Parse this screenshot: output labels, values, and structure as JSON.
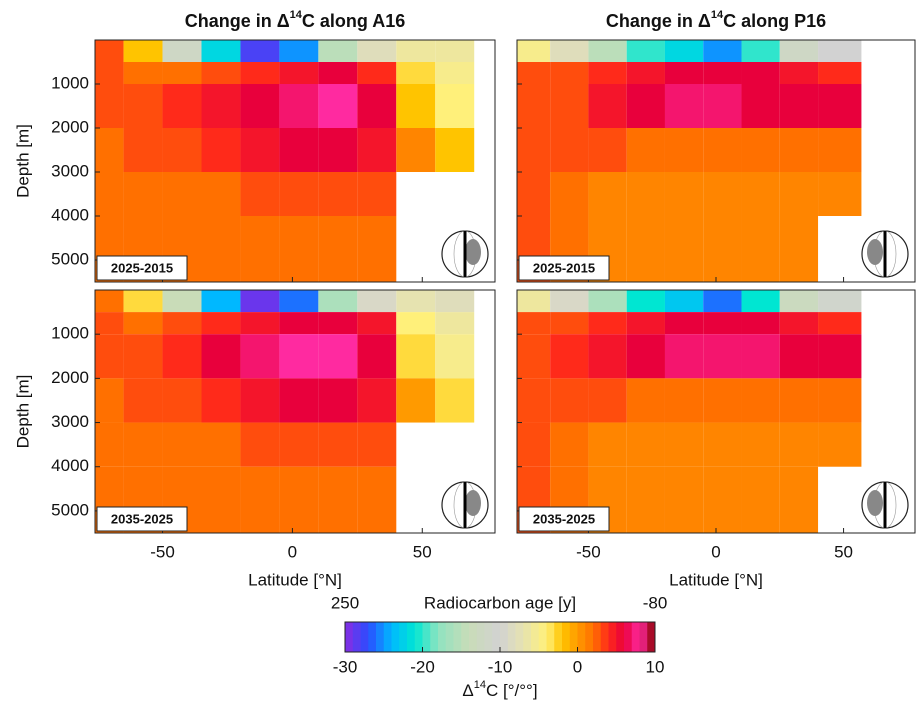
{
  "chart_data": [
    {
      "type": "heatmap",
      "title": [
        "Change in Δ",
        "14",
        "C along A16"
      ],
      "label": "2025-2015",
      "ylabel": "Depth [m]",
      "xbins": [
        -80,
        -65,
        -50,
        -35,
        -20,
        -5,
        10,
        25,
        40,
        55,
        70
      ],
      "ybins": [
        0,
        500,
        1000,
        2000,
        3000,
        4000,
        5500
      ],
      "values": [
        [
          3,
          -2,
          -12,
          -22,
          -28,
          -25,
          -15,
          -8,
          -6,
          -6
        ],
        [
          3,
          2,
          2,
          3,
          4,
          5,
          6,
          4,
          -3,
          -5
        ],
        [
          3,
          3,
          4,
          5,
          6,
          7,
          8,
          6,
          -2,
          -4
        ],
        [
          2,
          3,
          3,
          4,
          5,
          6,
          6,
          5,
          1,
          -2
        ],
        [
          2,
          2,
          2,
          2,
          3,
          3,
          3,
          3,
          null,
          null
        ],
        [
          2,
          2,
          2,
          2,
          2,
          2,
          2,
          2,
          null,
          null
        ]
      ],
      "xlim": [
        -76,
        78
      ],
      "ylim": [
        0,
        5500
      ],
      "xticks": [
        -50,
        0,
        50
      ],
      "yticks": [
        1000,
        2000,
        3000,
        4000,
        5000
      ]
    },
    {
      "type": "heatmap",
      "title": [
        "Change in Δ",
        "14",
        "C along P16"
      ],
      "label": "2025-2015",
      "xbins": [
        -80,
        -65,
        -50,
        -35,
        -20,
        -5,
        10,
        25,
        40,
        57
      ],
      "ybins": [
        0,
        500,
        1000,
        2000,
        3000,
        4000,
        5500
      ],
      "values": [
        [
          -5,
          -8,
          -15,
          -20,
          -22,
          -25,
          -20,
          -12,
          -10
        ],
        [
          3,
          3,
          4,
          5,
          6,
          6,
          6,
          5,
          4
        ],
        [
          3,
          3,
          5,
          6,
          7,
          7,
          6,
          6,
          6
        ],
        [
          3,
          3,
          3,
          2,
          2,
          2,
          2,
          2,
          2
        ],
        [
          3,
          2,
          1,
          1,
          1,
          1,
          1,
          1,
          1
        ],
        [
          3,
          2,
          1,
          1,
          1,
          1,
          1,
          1,
          null
        ]
      ],
      "xlim": [
        -78,
        78
      ],
      "ylim": [
        0,
        5500
      ],
      "xticks": [
        -50,
        0,
        50
      ],
      "yticks": [
        1000,
        2000,
        3000,
        4000,
        5000
      ]
    },
    {
      "type": "heatmap",
      "label": "2035-2025",
      "ylabel": "Depth [m]",
      "xlabel": "Latitude [°N]",
      "xbins": [
        -80,
        -65,
        -50,
        -35,
        -20,
        -5,
        10,
        25,
        40,
        55,
        70
      ],
      "ybins": [
        0,
        500,
        1000,
        2000,
        3000,
        4000,
        5500
      ],
      "values": [
        [
          2,
          -3,
          -14,
          -24,
          -29,
          -26,
          -16,
          -9,
          -7,
          -8
        ],
        [
          3,
          2,
          3,
          4,
          5,
          6,
          6,
          5,
          -4,
          -6
        ],
        [
          3,
          3,
          4,
          6,
          7,
          8,
          8,
          6,
          -3,
          -5
        ],
        [
          2,
          3,
          3,
          4,
          5,
          6,
          6,
          5,
          0,
          -3
        ],
        [
          2,
          2,
          2,
          2,
          3,
          3,
          3,
          3,
          null,
          null
        ],
        [
          2,
          2,
          2,
          2,
          2,
          2,
          2,
          2,
          null,
          null
        ]
      ],
      "xlim": [
        -76,
        78
      ],
      "ylim": [
        0,
        5500
      ],
      "xticks": [
        -50,
        0,
        50
      ],
      "yticks": [
        1000,
        2000,
        3000,
        4000,
        5000
      ]
    },
    {
      "type": "heatmap",
      "label": "2035-2025",
      "xlabel": "Latitude [°N]",
      "xbins": [
        -80,
        -65,
        -50,
        -35,
        -20,
        -5,
        10,
        25,
        40,
        57
      ],
      "ybins": [
        0,
        500,
        1000,
        2000,
        3000,
        4000,
        5500
      ],
      "values": [
        [
          -6,
          -9,
          -16,
          -21,
          -23,
          -26,
          -21,
          -13,
          -11
        ],
        [
          3,
          3,
          4,
          5,
          6,
          6,
          6,
          5,
          4
        ],
        [
          3,
          4,
          5,
          6,
          7,
          7,
          7,
          6,
          6
        ],
        [
          3,
          3,
          3,
          2,
          2,
          2,
          2,
          2,
          2
        ],
        [
          3,
          2,
          1,
          1,
          1,
          1,
          1,
          1,
          1
        ],
        [
          3,
          2,
          1,
          1,
          1,
          1,
          1,
          1,
          null
        ]
      ],
      "xlim": [
        -78,
        78
      ],
      "ylim": [
        0,
        5500
      ],
      "xticks": [
        -50,
        0,
        50
      ],
      "yticks": [
        1000,
        2000,
        3000,
        4000,
        5000
      ]
    }
  ],
  "colorbar": {
    "clim": [
      -30,
      10
    ],
    "ticks": [
      -30,
      -20,
      -10,
      0,
      10
    ],
    "label": [
      "Δ",
      "14",
      "C [°/°°]"
    ],
    "top_label": "Radiocarbon age [y]",
    "top_left": "250",
    "top_right": "-80"
  }
}
